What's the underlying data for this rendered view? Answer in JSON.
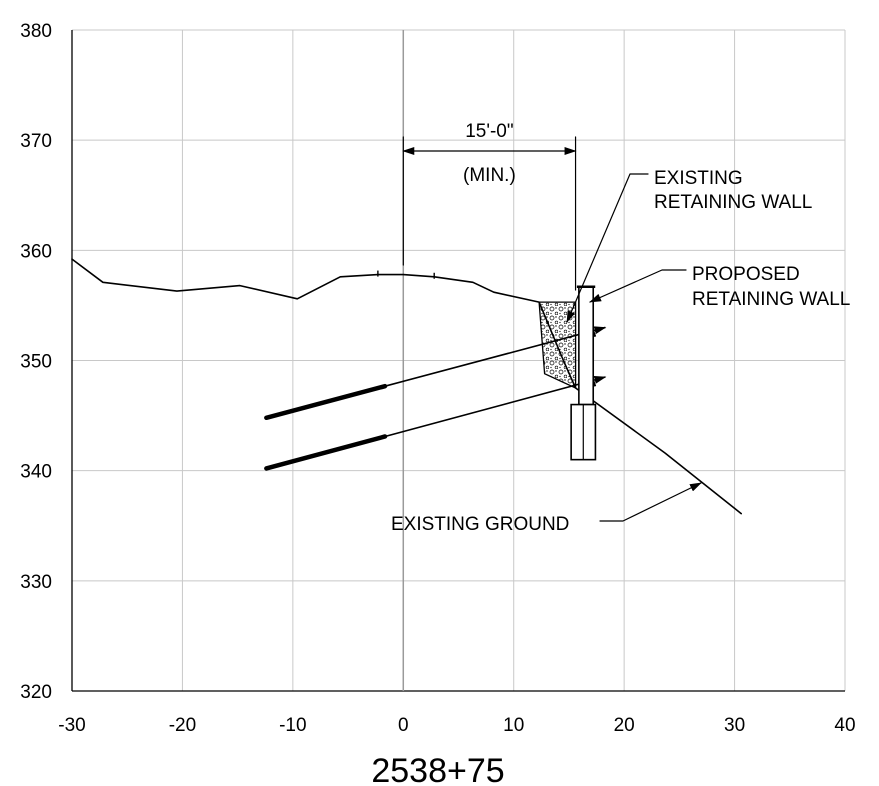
{
  "chart_data": {
    "type": "section",
    "station_label": "2538+75",
    "xlim": [
      -30,
      40
    ],
    "ylim": [
      320,
      380
    ],
    "x_ticks": [
      "-30",
      "-20",
      "-10",
      "0",
      "10",
      "20",
      "30",
      "40"
    ],
    "y_ticks": [
      "380",
      "370",
      "360",
      "350",
      "340",
      "330",
      "320"
    ],
    "grid": true,
    "centerline_x": 0,
    "existing_ground": {
      "x": [
        -30,
        -27.2,
        -20.5,
        -14.8,
        -9.6,
        -5.7,
        -2.3,
        0,
        2.8,
        6.3,
        8.2,
        12.3,
        14.5,
        15.6,
        23.7,
        30.6
      ],
      "y": [
        359.2,
        357.1,
        356.3,
        356.8,
        355.6,
        357.6,
        357.8,
        357.8,
        357.6,
        357.1,
        356.2,
        355.3,
        350.0,
        347.5,
        341.6,
        336.1
      ]
    },
    "existing_retaining_wall": {
      "x": [
        12.3,
        15.6,
        15.6,
        14.3,
        12.8,
        12.3
      ],
      "y": [
        355.3,
        355.3,
        347.5,
        348.1,
        348.8,
        355.3
      ]
    },
    "proposed_retaining_wall": {
      "x_left": 15.9,
      "x_right": 17.2,
      "top": 356.7,
      "bottom": 346.0,
      "footing": {
        "x_left": 15.2,
        "x_right": 17.4,
        "top": 346.0,
        "bottom": 341.0
      }
    },
    "tiebacks": [
      {
        "x": [
          -12.4,
          18.3
        ],
        "y": [
          344.8,
          353.0
        ]
      },
      {
        "x": [
          -12.4,
          18.3
        ],
        "y": [
          340.2,
          348.5
        ]
      }
    ],
    "annotations": {
      "dimension_text": "15'-0\"",
      "dimension_note": "(MIN.)",
      "existing_wall_label": [
        "EXISTING",
        "RETAINING WALL"
      ],
      "proposed_wall_label": [
        "PROPOSED",
        "RETAINING WALL"
      ],
      "ground_label": "EXISTING GROUND"
    }
  }
}
